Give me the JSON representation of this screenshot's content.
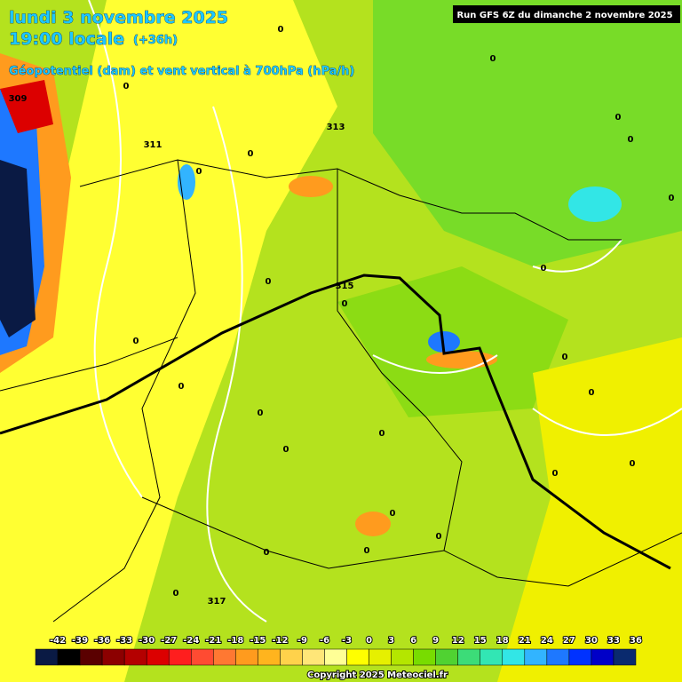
{
  "header": {
    "date": "lundi 3 novembre 2025",
    "time": "19:00 locale",
    "lead": "(+36h)",
    "field": "Géopotentiel (dam) et vent vertical à 700hPa (hPa/h)",
    "run": "Run GFS 6Z du dimanche 2 novembre 2025"
  },
  "contour_labels": [
    "0",
    "0",
    "0",
    "0",
    "0",
    "0",
    "0",
    "0",
    "0",
    "0",
    "0",
    "0",
    "0",
    "0",
    "0",
    "0",
    "0",
    "0",
    "0",
    "0",
    "0",
    "0",
    "0",
    "0",
    "0",
    "309",
    "311",
    "313",
    "315",
    "317"
  ],
  "legend": {
    "labels": [
      -42,
      -39,
      -36,
      -33,
      -30,
      -27,
      -24,
      -21,
      -18,
      -15,
      -12,
      -9,
      -6,
      -3,
      0,
      3,
      6,
      9,
      12,
      15,
      18,
      21,
      24,
      27,
      30,
      33,
      36
    ],
    "colors": [
      "#0a1a44",
      "#000000",
      "#5a0000",
      "#8c0000",
      "#b40000",
      "#dc0000",
      "#ff1e1e",
      "#ff4b32",
      "#ff7832",
      "#ff9b1e",
      "#ffb41e",
      "#ffd24b",
      "#ffe678",
      "#ffff96",
      "#ffff00",
      "#e6f000",
      "#b4e600",
      "#78dc00",
      "#50d232",
      "#3cdc78",
      "#32e6b4",
      "#32e6e6",
      "#32b4ff",
      "#1e78ff",
      "#0032ff",
      "#0000c8",
      "#0a2a6e"
    ]
  },
  "copyright": "Copyright 2025 Meteociel.fr"
}
